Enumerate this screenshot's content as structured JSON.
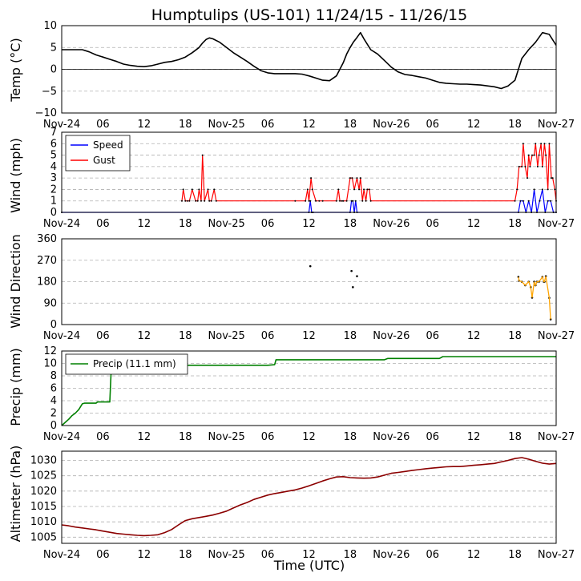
{
  "title": "Humptulips (US-101) 11/24/15 - 11/26/15",
  "xlabel": "Time (UTC)",
  "x_ticks": [
    "Nov-24",
    "06",
    "12",
    "18",
    "Nov-25",
    "06",
    "12",
    "18",
    "Nov-26",
    "06",
    "12",
    "18",
    "Nov-27"
  ],
  "x_range_hours": [
    0,
    72
  ],
  "colors": {
    "temp": "#000000",
    "speed": "#0000ff",
    "gust": "#ff0000",
    "direction": "#ffa500",
    "precip": "#008000",
    "altimeter": "#8b0000",
    "grid": "#b0b0b0"
  },
  "chart_data": [
    {
      "type": "line",
      "name": "temperature",
      "ylabel": "Temp (°C)",
      "ylim": [
        -10,
        10
      ],
      "yticks": [
        "10",
        "5",
        "0",
        "−5",
        "−10"
      ],
      "ytick_values": [
        10,
        5,
        0,
        -5,
        -10
      ],
      "zero_line": true,
      "series": [
        {
          "name": "Temp",
          "x": [
            0,
            3,
            4,
            5,
            6,
            7,
            8,
            9,
            10,
            11,
            12,
            13,
            14,
            15,
            16,
            17,
            18,
            19,
            20,
            20.5,
            21,
            21.5,
            22,
            23,
            24,
            25,
            26,
            27,
            28,
            29,
            30,
            31,
            32,
            33,
            34,
            35,
            36,
            37,
            38,
            39,
            40,
            41,
            41.5,
            42,
            42.5,
            43,
            43.5,
            44,
            45,
            46,
            47,
            48,
            49,
            50,
            51,
            52,
            53,
            54,
            55,
            56,
            57,
            58,
            59,
            60,
            61,
            62,
            63,
            64,
            65,
            66,
            66.5,
            67,
            68,
            69,
            70,
            71,
            72
          ],
          "y": [
            4.5,
            4.5,
            4.0,
            3.3,
            2.8,
            2.3,
            1.8,
            1.2,
            0.9,
            0.7,
            0.6,
            0.8,
            1.2,
            1.6,
            1.8,
            2.2,
            2.8,
            3.8,
            5.0,
            6.0,
            6.8,
            7.2,
            7.0,
            6.2,
            5.0,
            3.8,
            2.8,
            1.8,
            0.7,
            -0.3,
            -0.8,
            -1.0,
            -1.0,
            -1.0,
            -1.0,
            -1.1,
            -1.5,
            -2.0,
            -2.5,
            -2.6,
            -1.5,
            1.5,
            3.5,
            5.0,
            6.3,
            7.3,
            8.4,
            7.0,
            4.5,
            3.5,
            2.0,
            0.5,
            -0.6,
            -1.2,
            -1.4,
            -1.7,
            -2.0,
            -2.5,
            -3.0,
            -3.2,
            -3.3,
            -3.4,
            -3.4,
            -3.5,
            -3.6,
            -3.8,
            -4.0,
            -4.4,
            -3.8,
            -2.5,
            0.0,
            2.5,
            4.5,
            6.2,
            8.4,
            8.0,
            5.5
          ]
        }
      ]
    },
    {
      "type": "line",
      "name": "wind",
      "ylabel": "Wind (mph)",
      "ylim": [
        0,
        7
      ],
      "yticks": [
        "7",
        "6",
        "5",
        "4",
        "3",
        "2",
        "1",
        "0"
      ],
      "ytick_values": [
        7,
        6,
        5,
        4,
        3,
        2,
        1,
        0
      ],
      "legend": [
        "Speed",
        "Gust"
      ],
      "legend_position": "upper-left",
      "series": [
        {
          "name": "Speed",
          "x": [
            0,
            36,
            36.2,
            36.4,
            36.6,
            42,
            42.2,
            42.4,
            42.6,
            42.8,
            43,
            66.5,
            66.8,
            67.2,
            67.6,
            68,
            68.4,
            68.8,
            69.2,
            69.6,
            70,
            70.4,
            70.8,
            71.2,
            71.6,
            72
          ],
          "y": [
            0,
            0,
            1,
            0,
            0,
            0,
            1,
            1,
            0,
            1,
            0,
            0,
            1,
            1,
            0,
            1,
            0,
            2,
            0,
            1,
            2,
            0,
            1,
            1,
            0,
            0
          ]
        },
        {
          "name": "Gust",
          "x": [
            17.5,
            17.7,
            18,
            18.3,
            18.6,
            19,
            19.5,
            19.8,
            20,
            20.3,
            20.5,
            20.8,
            21.3,
            21.5,
            21.8,
            22.2,
            22.5,
            34,
            35.5,
            35.8,
            36,
            36.3,
            36.5,
            37,
            37.5,
            38,
            40,
            40.3,
            40.5,
            40.8,
            41,
            41.5,
            42,
            42.3,
            42.6,
            43,
            43.3,
            43.5,
            43.8,
            44,
            44.3,
            44.5,
            44.8,
            45,
            66,
            66.3,
            66.6,
            67,
            67.2,
            67.5,
            67.8,
            68,
            68.2,
            68.5,
            68.8,
            69,
            69.3,
            69.5,
            69.8,
            70,
            70.3,
            70.5,
            70.8,
            71,
            71.3,
            71.5,
            71.8,
            72
          ],
          "y": [
            1,
            2,
            1,
            1,
            1,
            2,
            1,
            1,
            2,
            1,
            5,
            1,
            2,
            1,
            1,
            2,
            1,
            1,
            1,
            2,
            1,
            3,
            2,
            1,
            1,
            1,
            1,
            2,
            1,
            1,
            1,
            1,
            3,
            3,
            2,
            3,
            2,
            3,
            1,
            2,
            1,
            2,
            2,
            1,
            1,
            2,
            4,
            4,
            6,
            4,
            3,
            5,
            4,
            5,
            5,
            6,
            4,
            5,
            6,
            4,
            6,
            5,
            2,
            6,
            3,
            3,
            2,
            1
          ]
        }
      ]
    },
    {
      "type": "scatter",
      "name": "wind_direction",
      "ylabel": "Wind Direction",
      "ylim": [
        0,
        360
      ],
      "yticks": [
        "360",
        "270",
        "180",
        "90",
        "0"
      ],
      "ytick_values": [
        360,
        270,
        180,
        90,
        0
      ],
      "series": [
        {
          "name": "Direction",
          "x": [
            36.2,
            42.2,
            42.4,
            43,
            66.5,
            66.6,
            67,
            67.5,
            68,
            68.3,
            68.5,
            68.8,
            69,
            69.2,
            69.5,
            70,
            70.2,
            70.3,
            70.5,
            71,
            71.2
          ],
          "y": [
            245,
            225,
            157,
            203,
            200,
            184,
            180,
            165,
            180,
            157,
            113,
            180,
            165,
            180,
            180,
            200,
            180,
            180,
            203,
            112,
            22
          ]
        }
      ]
    },
    {
      "type": "line",
      "name": "precip",
      "ylabel": "Precip (mm)",
      "ylim": [
        0,
        12
      ],
      "yticks": [
        "12",
        "10",
        "8",
        "6",
        "4",
        "2",
        "0"
      ],
      "ytick_values": [
        12,
        10,
        8,
        6,
        4,
        2,
        0
      ],
      "legend": [
        "Precip (11.1 mm)"
      ],
      "legend_position": "upper-left",
      "series": [
        {
          "name": "Precip (11.1 mm)",
          "x": [
            0,
            0.5,
            1,
            1.5,
            2,
            2.5,
            3,
            3.3,
            4,
            5,
            5.2,
            7,
            7.2,
            15,
            15.5,
            17,
            17.5,
            30,
            31,
            31.2,
            47,
            47.5,
            55,
            55.5,
            72
          ],
          "y": [
            0,
            0.5,
            1,
            1.6,
            2,
            2.6,
            3.5,
            3.6,
            3.6,
            3.6,
            3.8,
            3.8,
            8.8,
            8.8,
            9.3,
            9.5,
            9.7,
            9.7,
            9.8,
            10.6,
            10.6,
            10.8,
            10.8,
            11.1,
            11.1
          ]
        }
      ]
    },
    {
      "type": "line",
      "name": "altimeter",
      "ylabel": "Altimeter (hPa)",
      "ylim": [
        1003,
        1033
      ],
      "yticks": [
        "1030",
        "1025",
        "1020",
        "1015",
        "1010",
        "1005"
      ],
      "ytick_values": [
        1030,
        1025,
        1020,
        1015,
        1010,
        1005
      ],
      "series": [
        {
          "name": "Altimeter",
          "x": [
            0,
            1,
            2,
            3,
            4,
            5,
            6,
            7,
            8,
            9,
            10,
            11,
            12,
            13,
            14,
            15,
            16,
            17,
            18,
            19,
            20,
            21,
            22,
            23,
            24,
            25,
            26,
            27,
            28,
            29,
            30,
            31,
            32,
            33,
            34,
            35,
            36,
            37,
            38,
            39,
            40,
            41,
            42,
            43,
            44,
            45,
            46,
            47,
            48,
            49,
            50,
            51,
            52,
            53,
            54,
            55,
            56,
            57,
            58,
            59,
            60,
            61,
            62,
            63,
            64,
            65,
            66,
            67,
            68,
            69,
            70,
            71,
            72
          ],
          "y": [
            1009,
            1008.7,
            1008.3,
            1008,
            1007.7,
            1007.4,
            1007,
            1006.6,
            1006.2,
            1006,
            1005.8,
            1005.6,
            1005.5,
            1005.6,
            1005.8,
            1006.5,
            1007.5,
            1009,
            1010.4,
            1011,
            1011.4,
            1011.8,
            1012.2,
            1012.8,
            1013.5,
            1014.5,
            1015.5,
            1016.3,
            1017.3,
            1018,
            1018.7,
            1019.2,
            1019.6,
            1020,
            1020.4,
            1021,
            1021.7,
            1022.5,
            1023.3,
            1024,
            1024.6,
            1024.7,
            1024.4,
            1024.3,
            1024.2,
            1024.3,
            1024.6,
            1025.2,
            1025.8,
            1026.1,
            1026.4,
            1026.7,
            1027,
            1027.3,
            1027.5,
            1027.7,
            1027.9,
            1028,
            1028,
            1028.2,
            1028.4,
            1028.6,
            1028.8,
            1029,
            1029.5,
            1030,
            1030.6,
            1030.9,
            1030.4,
            1029.7,
            1029.1,
            1028.8,
            1029
          ]
        }
      ]
    }
  ]
}
